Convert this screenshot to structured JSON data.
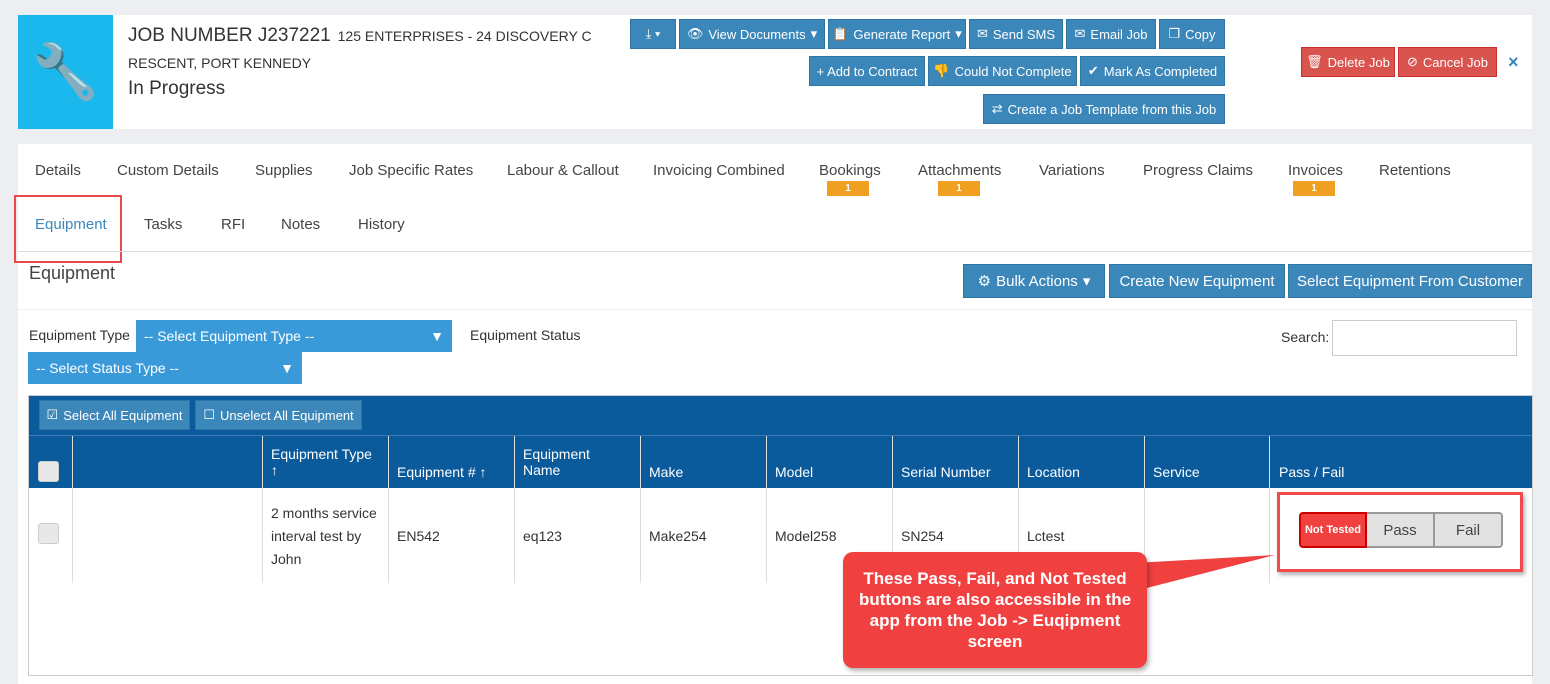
{
  "header": {
    "job_number": "JOB NUMBER J237221",
    "address_line1": "125 ENTERPRISES - 24 DISCOVERY C",
    "address_line2": "RESCENT, PORT KENNEDY",
    "status": "In Progress"
  },
  "actions": {
    "view_documents": "View Documents",
    "generate_report": "Generate Report",
    "send_sms": "Send SMS",
    "email_job": "Email Job",
    "copy": "Copy",
    "add_to_contract": "+ Add to Contract",
    "could_not_complete": "Could Not Complete",
    "mark_as_completed": "Mark As Completed",
    "create_template": "Create a Job Template from this Job",
    "delete_job": "Delete Job",
    "cancel_job": "Cancel Job",
    "close": "×"
  },
  "tabs": [
    {
      "label": "Details"
    },
    {
      "label": "Custom Details"
    },
    {
      "label": "Supplies"
    },
    {
      "label": "Job Specific Rates"
    },
    {
      "label": "Labour & Callout"
    },
    {
      "label": "Invoicing Combined"
    },
    {
      "label": "Bookings",
      "badge": "1"
    },
    {
      "label": "Attachments",
      "badge": "1"
    },
    {
      "label": "Variations"
    },
    {
      "label": "Progress Claims"
    },
    {
      "label": "Invoices",
      "badge": "1"
    },
    {
      "label": "Retentions"
    },
    {
      "label": "Equipment"
    },
    {
      "label": "Tasks"
    },
    {
      "label": "RFI"
    },
    {
      "label": "Notes"
    },
    {
      "label": "History"
    }
  ],
  "equipment": {
    "title": "Equipment",
    "bulk_actions": "Bulk Actions",
    "create_new": "Create New Equipment",
    "select_from_customer": "Select Equipment From Customer",
    "type_label": "Equipment Type",
    "type_select": "-- Select Equipment Type --",
    "status_label": "Equipment Status",
    "status_select": "-- Select Status Type --",
    "search_label": "Search:",
    "search_value": "",
    "select_all": "Select All Equipment",
    "unselect_all": "Unselect All Equipment"
  },
  "table": {
    "columns": [
      "Equipment Type",
      "Equipment #",
      "Equipment Name",
      "Make",
      "Model",
      "Serial Number",
      "Location",
      "Service",
      "Pass / Fail"
    ],
    "rows": [
      {
        "type": "2 months service interval test by John",
        "number": "EN542",
        "name": "eq123",
        "make": "Make254",
        "model": "Model258",
        "serial": "SN254",
        "location": "Lctest",
        "service": "",
        "pass_fail": {
          "not_tested": "Not Tested",
          "pass": "Pass",
          "fail": "Fail",
          "selected": "Not Tested"
        }
      }
    ]
  },
  "callout": {
    "text": "These Pass, Fail, and Not Tested buttons are also accessible in the app from the Job -> Euqipment screen"
  },
  "colors": {
    "accent": "#3b87b9",
    "table_header": "#0a5a9c",
    "callout": "#f04040",
    "not_tested": "#f04040"
  }
}
